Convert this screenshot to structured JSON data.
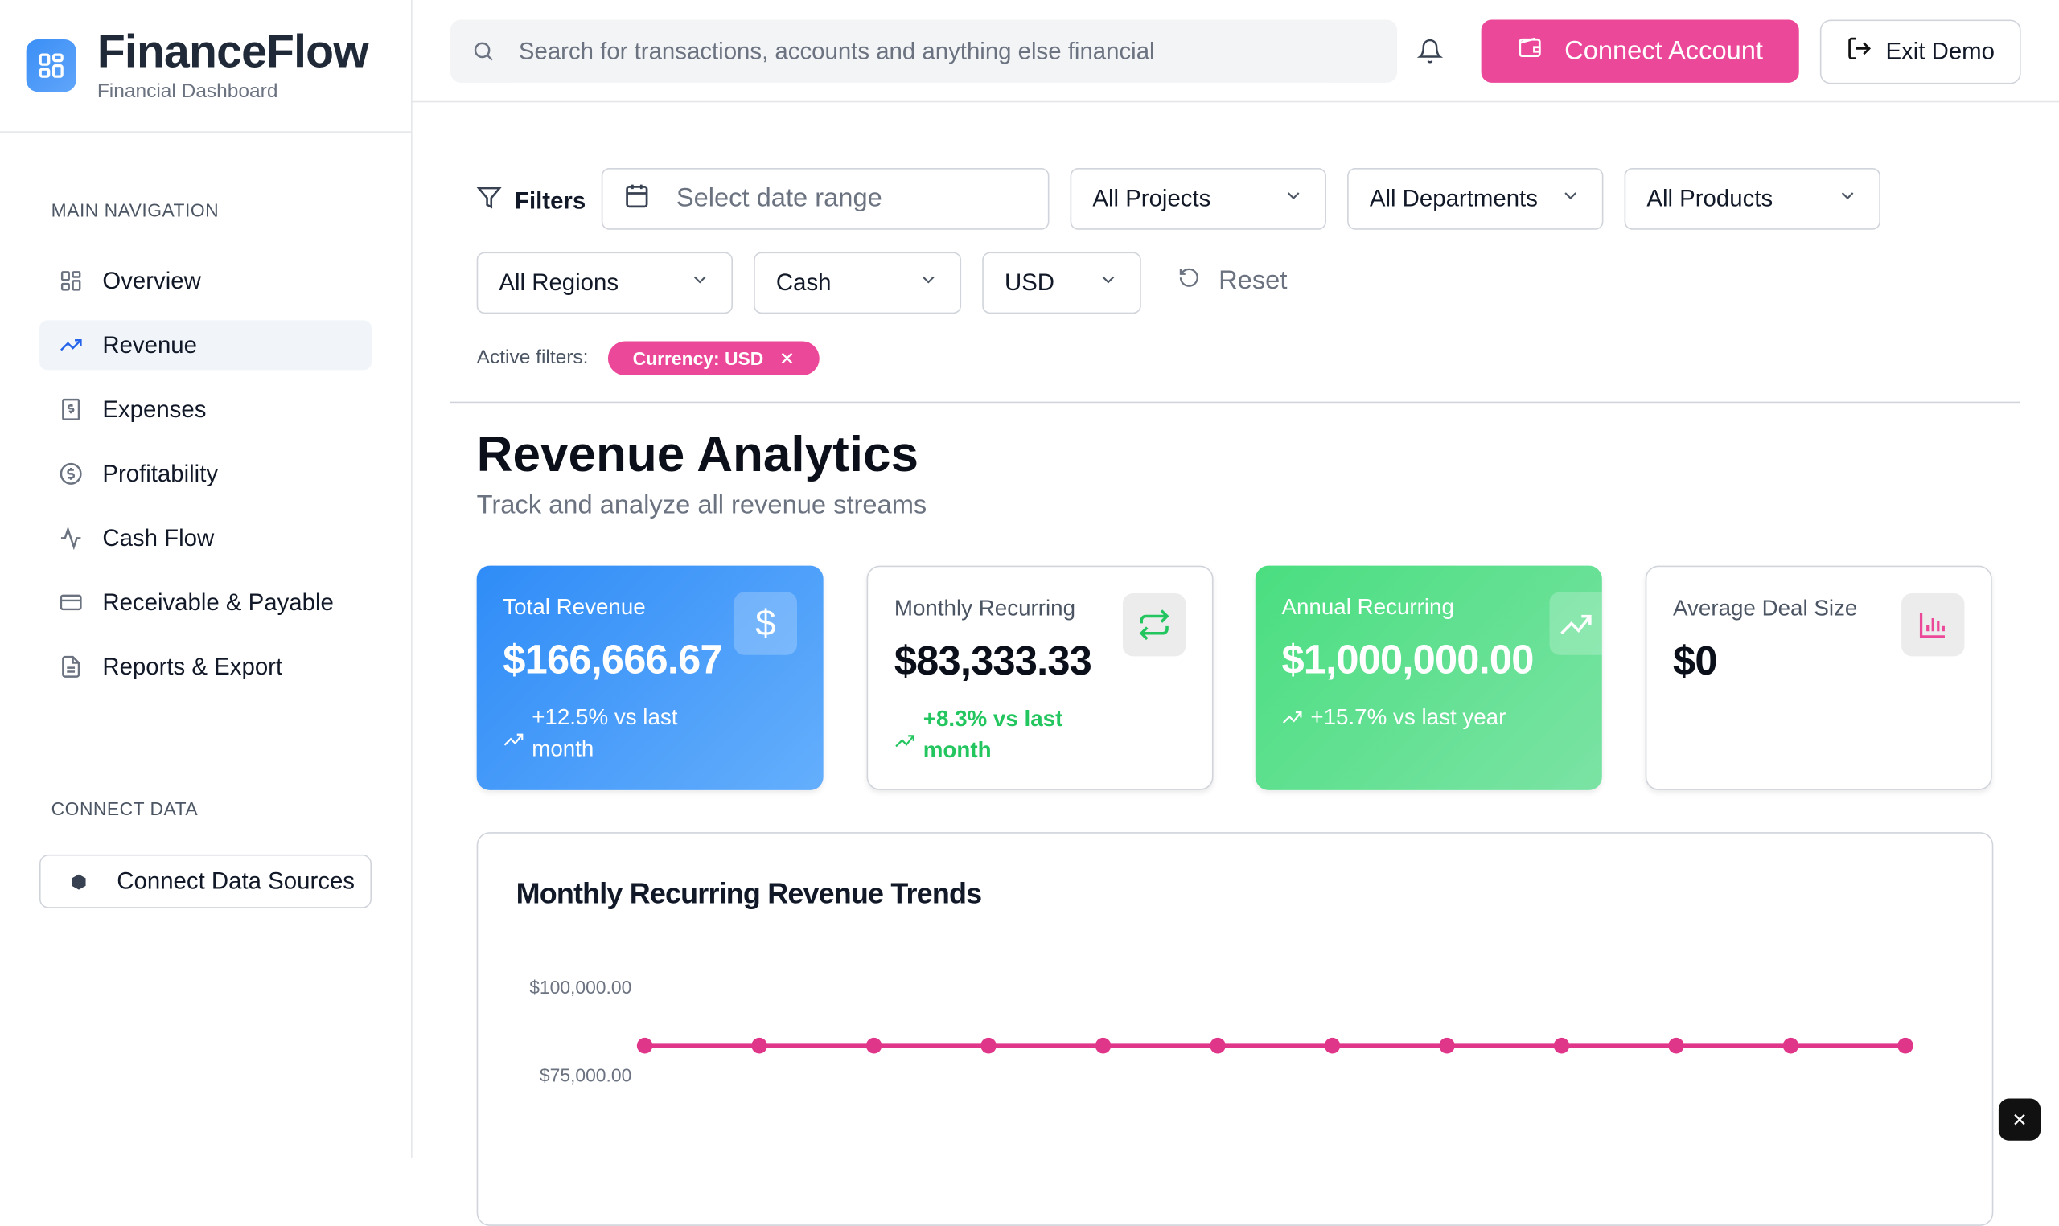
{
  "app": {
    "title": "FinanceFlow",
    "subtitle": "Financial Dashboard"
  },
  "sidebar": {
    "section_main": "MAIN NAVIGATION",
    "items": [
      {
        "label": "Overview",
        "icon": "layout-grid-icon"
      },
      {
        "label": "Revenue",
        "icon": "trending-up-icon",
        "active": true
      },
      {
        "label": "Expenses",
        "icon": "receipt-icon"
      },
      {
        "label": "Profitability",
        "icon": "dollar-circle-icon"
      },
      {
        "label": "Cash Flow",
        "icon": "activity-icon"
      },
      {
        "label": "Receivable & Payable",
        "icon": "credit-card-icon"
      },
      {
        "label": "Reports & Export",
        "icon": "file-text-icon"
      }
    ],
    "section_connect": "CONNECT DATA",
    "connect_button": "Connect Data Sources"
  },
  "header": {
    "search_placeholder": "Search for transactions, accounts and anything else financial",
    "connect_account": "Connect Account",
    "exit_demo": "Exit Demo"
  },
  "filters": {
    "label": "Filters",
    "date_placeholder": "Select date range",
    "projects": "All Projects",
    "departments": "All Departments",
    "products": "All Products",
    "regions": "All Regions",
    "basis": "Cash",
    "currency": "USD",
    "reset": "Reset",
    "active_label": "Active filters:",
    "active_chip": "Currency: USD"
  },
  "page": {
    "title": "Revenue Analytics",
    "subtitle": "Track and analyze all revenue streams"
  },
  "cards": [
    {
      "label": "Total Revenue",
      "value": "$166,666.67",
      "change": "+12.5% vs last month",
      "icon": "dollar-icon"
    },
    {
      "label": "Monthly Recurring",
      "value": "$83,333.33",
      "change": "+8.3% vs last month",
      "icon": "repeat-icon"
    },
    {
      "label": "Annual Recurring",
      "value": "$1,000,000.00",
      "change": "+15.7% vs last year",
      "icon": "trending-up-icon"
    },
    {
      "label": "Average Deal Size",
      "value": "$0",
      "icon": "bar-chart-icon"
    }
  ],
  "colors": {
    "accent": "#ec4899",
    "blue": "#3b8ff6",
    "green": "#4ade80"
  },
  "chart_data": {
    "type": "line",
    "title": "Monthly Recurring Revenue Trends",
    "y_ticks": [
      "$100,000.00",
      "$75,000.00"
    ],
    "y_tick_values": [
      100000,
      75000
    ],
    "values": [
      83333.33,
      83333.33,
      83333.33,
      83333.33,
      83333.33,
      83333.33,
      83333.33,
      83333.33,
      83333.33,
      83333.33,
      83333.33,
      83333.33
    ],
    "color": "#e0368a"
  }
}
